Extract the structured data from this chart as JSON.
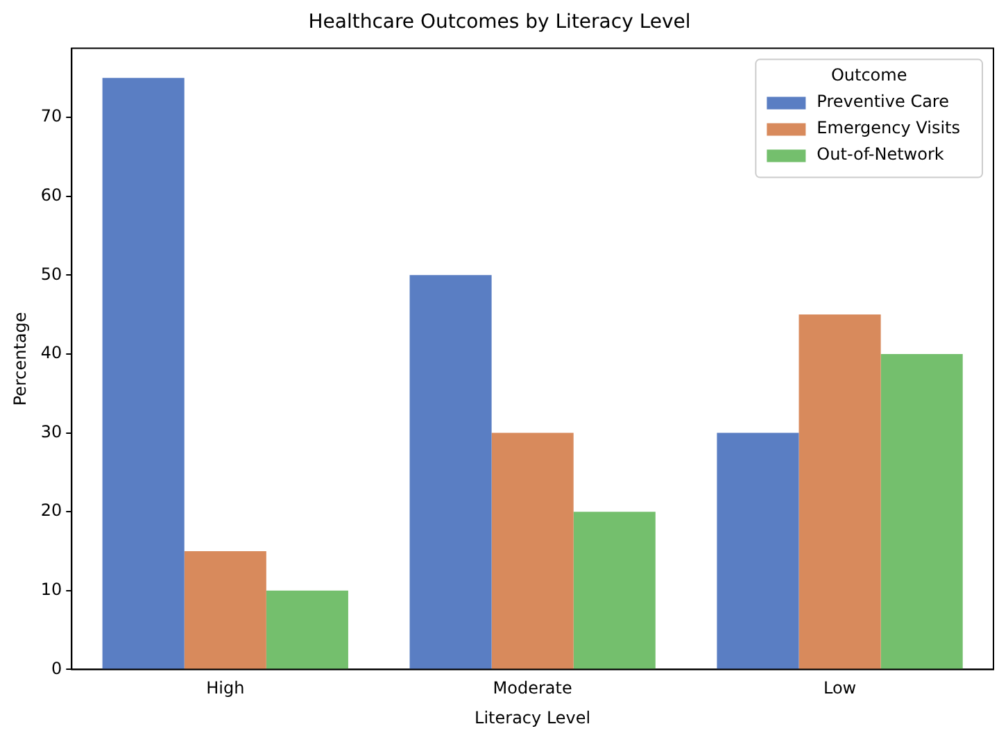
{
  "chart_data": {
    "type": "bar",
    "title": "Healthcare Outcomes by Literacy Level",
    "xlabel": "Literacy Level",
    "ylabel": "Percentage",
    "legend_title": "Outcome",
    "categories": [
      "High",
      "Moderate",
      "Low"
    ],
    "series": [
      {
        "name": "Preventive Care",
        "color": "#5a7ec3",
        "values": [
          75,
          50,
          30
        ]
      },
      {
        "name": "Emergency Visits",
        "color": "#d88a5c",
        "values": [
          15,
          30,
          45
        ]
      },
      {
        "name": "Out-of-Network",
        "color": "#74bf6d",
        "values": [
          10,
          20,
          40
        ]
      }
    ],
    "ylim": [
      0,
      78.75
    ],
    "yticks": [
      0,
      10,
      20,
      30,
      40,
      50,
      60,
      70
    ],
    "grid": false,
    "legend": "top right"
  }
}
